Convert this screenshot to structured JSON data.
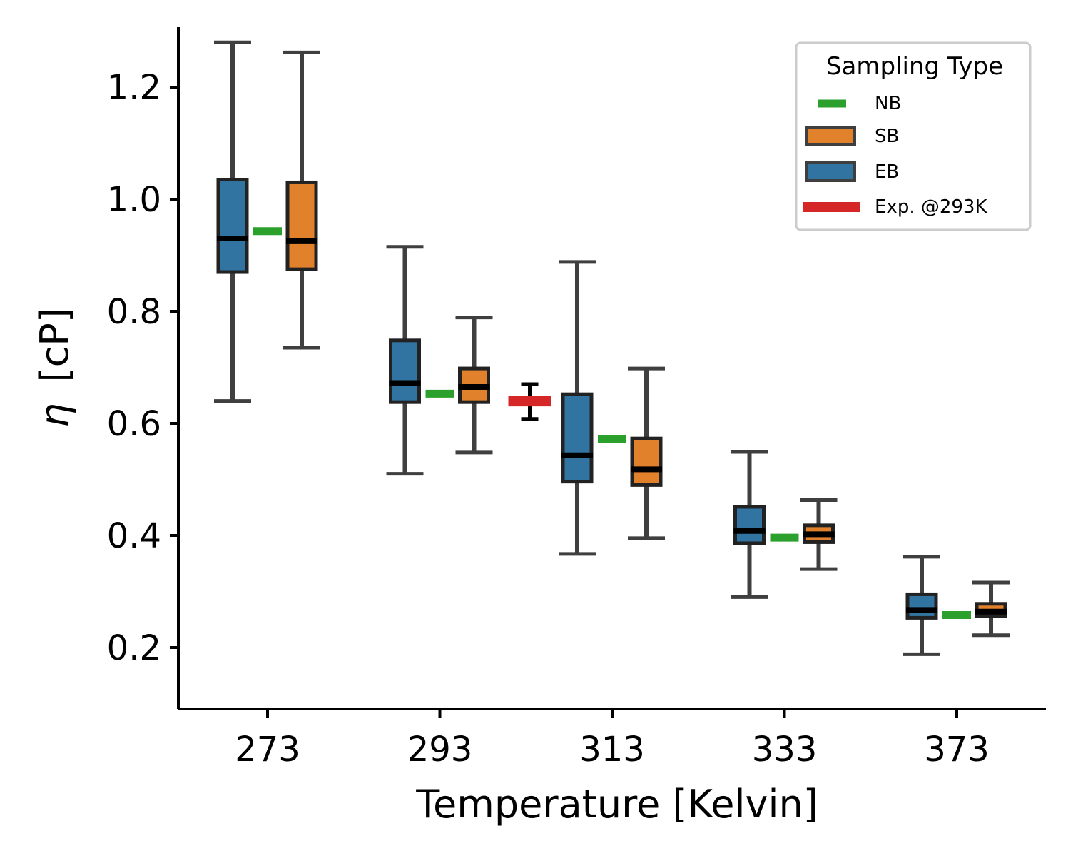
{
  "chart_data": {
    "type": "box",
    "xlabel": "Temperature [Kelvin]",
    "ylabel_symbol": "η",
    "ylabel_unit": "[cP]",
    "ylim": [
      0.1,
      1.3
    ],
    "yticks": [
      0.2,
      0.4,
      0.6,
      0.8,
      1.0,
      1.2
    ],
    "ytick_labels": [
      "0.2",
      "0.4",
      "0.6",
      "0.8",
      "1.0",
      "1.2"
    ],
    "categories": [
      "273",
      "293",
      "313",
      "333",
      "373"
    ],
    "legend": {
      "title": "Sampling Type",
      "position": "top-right",
      "entries": [
        {
          "label": "NB",
          "kind": "short-line",
          "color": "#2ca02c"
        },
        {
          "label": "SB",
          "kind": "box",
          "color": "#e1812c"
        },
        {
          "label": "EB",
          "kind": "box",
          "color": "#3274a1"
        },
        {
          "label": "Exp. @293K",
          "kind": "line",
          "color": "#d62728"
        }
      ]
    },
    "colors": {
      "EB": "#3274a1",
      "SB": "#e1812c",
      "NB": "#2ca02c",
      "Exp": "#d62728",
      "whisker": "#3f3f3f",
      "median": "#000000",
      "box_edge": "#222222"
    },
    "series": {
      "EB": [
        {
          "category": "273",
          "whislo": 0.64,
          "q1": 0.87,
          "med": 0.93,
          "q3": 1.035,
          "whishi": 1.28
        },
        {
          "category": "293",
          "whislo": 0.51,
          "q1": 0.638,
          "med": 0.672,
          "q3": 0.748,
          "whishi": 0.915
        },
        {
          "category": "313",
          "whislo": 0.367,
          "q1": 0.496,
          "med": 0.543,
          "q3": 0.652,
          "whishi": 0.888
        },
        {
          "category": "333",
          "whislo": 0.29,
          "q1": 0.386,
          "med": 0.408,
          "q3": 0.451,
          "whishi": 0.549
        },
        {
          "category": "373",
          "whislo": 0.188,
          "q1": 0.253,
          "med": 0.267,
          "q3": 0.295,
          "whishi": 0.362
        }
      ],
      "SB": [
        {
          "category": "273",
          "whislo": 0.735,
          "q1": 0.875,
          "med": 0.925,
          "q3": 1.03,
          "whishi": 1.262
        },
        {
          "category": "293",
          "whislo": 0.548,
          "q1": 0.638,
          "med": 0.665,
          "q3": 0.698,
          "whishi": 0.789
        },
        {
          "category": "313",
          "whislo": 0.395,
          "q1": 0.49,
          "med": 0.518,
          "q3": 0.573,
          "whishi": 0.698
        },
        {
          "category": "333",
          "whislo": 0.34,
          "q1": 0.388,
          "med": 0.402,
          "q3": 0.418,
          "whishi": 0.463
        },
        {
          "category": "373",
          "whislo": 0.222,
          "q1": 0.256,
          "med": 0.264,
          "q3": 0.278,
          "whishi": 0.316
        }
      ],
      "NB": [
        {
          "category": "273",
          "value": 0.943
        },
        {
          "category": "293",
          "value": 0.653
        },
        {
          "category": "313",
          "value": 0.572
        },
        {
          "category": "333",
          "value": 0.396
        },
        {
          "category": "373",
          "value": 0.258
        }
      ]
    },
    "experiment": {
      "category": "293",
      "value": 0.64,
      "err_low": 0.608,
      "err_high": 0.67
    }
  }
}
